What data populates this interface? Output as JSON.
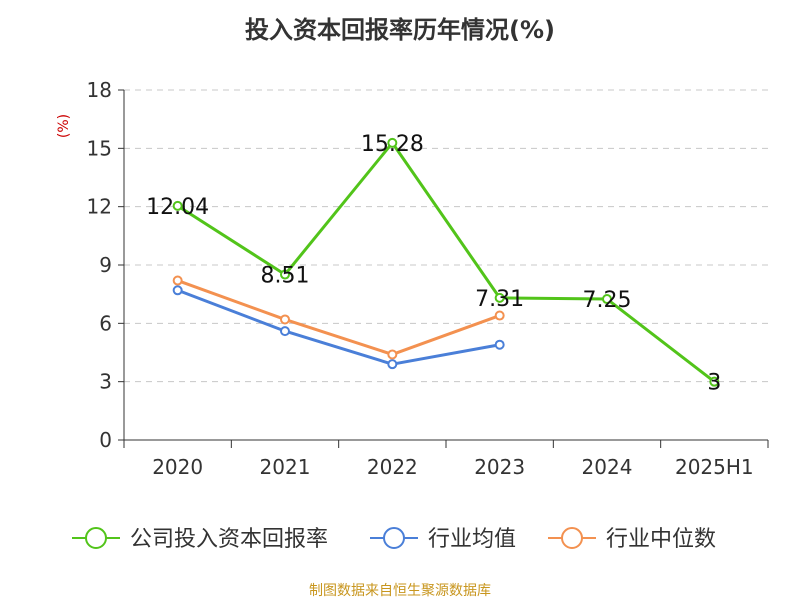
{
  "chart_data": {
    "type": "line",
    "title": "投入资本回报率历年情况(%)",
    "ylabel": "(%)",
    "xlabel": "",
    "categories": [
      "2020",
      "2021",
      "2022",
      "2023",
      "2024",
      "2025H1"
    ],
    "ylim": [
      0,
      18
    ],
    "yticks": [
      0,
      3,
      6,
      9,
      12,
      15,
      18
    ],
    "grid": true,
    "legend_position": "bottom",
    "series": [
      {
        "name": "公司投入资本回报率",
        "color": "#52c41a",
        "values": [
          12.04,
          8.51,
          15.28,
          7.31,
          7.25,
          3
        ],
        "labels": [
          "12.04",
          "8.51",
          "15.28",
          "7.31",
          "7.25",
          "3"
        ]
      },
      {
        "name": "行业均值",
        "color": "#4a7fd8",
        "values": [
          7.7,
          5.6,
          3.9,
          4.9,
          null,
          null
        ]
      },
      {
        "name": "行业中位数",
        "color": "#f39150",
        "values": [
          8.2,
          6.2,
          4.4,
          6.4,
          null,
          null
        ]
      }
    ]
  },
  "source_note": "制图数据来自恒生聚源数据库"
}
